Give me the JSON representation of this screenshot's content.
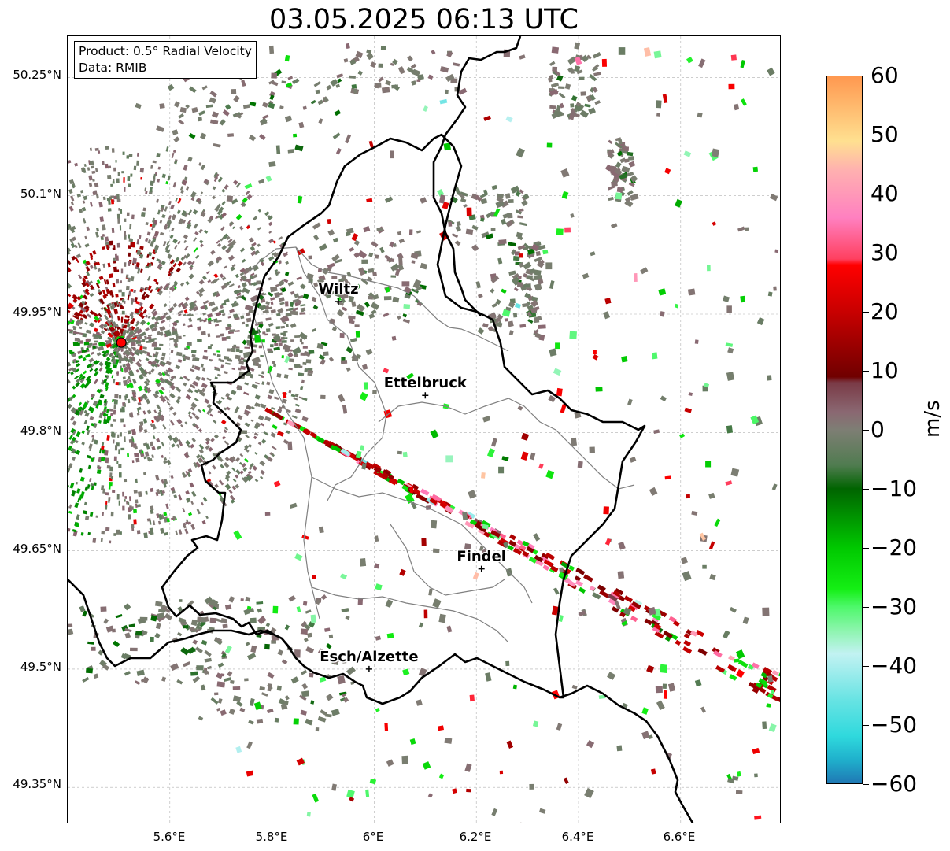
{
  "title": "03.05.2025 06:13 UTC",
  "info_box": {
    "product": "Product: 0.5° Radial Velocity",
    "data": "Data: RMIB"
  },
  "latitude_labels": [
    "50.25°N",
    "50.1°N",
    "49.95°N",
    "49.8°N",
    "49.65°N",
    "49.5°N",
    "49.35°N"
  ],
  "longitude_labels": [
    "5.6°E",
    "5.8°E",
    "6°E",
    "6.2°E",
    "6.4°E",
    "6.6°E"
  ],
  "cities": [
    {
      "name": "Wiltz",
      "lon": 5.93,
      "lat": 49.966
    },
    {
      "name": "Ettelbruck",
      "lon": 6.1,
      "lat": 49.847
    },
    {
      "name": "Findel",
      "lon": 6.21,
      "lat": 49.627
    },
    {
      "name": "Esch/Alzette",
      "lon": 5.99,
      "lat": 49.5
    }
  ],
  "radar_site": {
    "lon": 5.505,
    "lat": 49.914,
    "color": "#ff0000"
  },
  "colorbar": {
    "unit": "m/s",
    "min": -60,
    "max": 60,
    "tick_labels": [
      "60",
      "50",
      "40",
      "30",
      "20",
      "10",
      "0",
      "−10",
      "−20",
      "−30",
      "−40",
      "−50",
      "−60"
    ],
    "stops": [
      {
        "v": -60,
        "color": "#1f78b4"
      },
      {
        "v": -56,
        "color": "#1fb0cc"
      },
      {
        "v": -52,
        "color": "#2fd9dd"
      },
      {
        "v": -46,
        "color": "#66e3e3"
      },
      {
        "v": -38,
        "color": "#c2f2f2"
      },
      {
        "v": -34,
        "color": "#8cf5ad"
      },
      {
        "v": -30,
        "color": "#4df86a"
      },
      {
        "v": -27,
        "color": "#14ef14"
      },
      {
        "v": -20,
        "color": "#00c800"
      },
      {
        "v": -10,
        "color": "#006400"
      },
      {
        "v": -6,
        "color": "#507c50"
      },
      {
        "v": 0,
        "color": "#7e7e74"
      },
      {
        "v": 3,
        "color": "#8a6872"
      },
      {
        "v": 8,
        "color": "#7a3a46"
      },
      {
        "v": 9,
        "color": "#700000"
      },
      {
        "v": 20,
        "color": "#c80000"
      },
      {
        "v": 28,
        "color": "#ff0000"
      },
      {
        "v": 29,
        "color": "#ff4060"
      },
      {
        "v": 36,
        "color": "#ff80c0"
      },
      {
        "v": 44,
        "color": "#ffb0b0"
      },
      {
        "v": 49,
        "color": "#ffe090"
      },
      {
        "v": 60,
        "color": "#ff9850"
      }
    ]
  },
  "colors": {
    "national_border": "#000000",
    "district_border": "#808080",
    "grid": "#b0b0b0",
    "ground_clutter": "#80706e",
    "inbound_green": "#00c800",
    "outbound_red": "#8b0000"
  }
}
